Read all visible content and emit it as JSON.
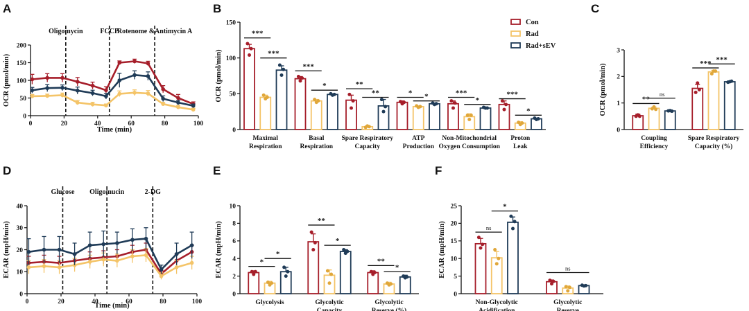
{
  "colors": {
    "Con": "#a61e2a",
    "Rad": "#f4c468",
    "Rad+sEV": "#1f3b57"
  },
  "legend": [
    "Con",
    "Rad",
    "Rad+sEV"
  ],
  "chart_data": [
    {
      "panel": "A",
      "type": "line",
      "xlabel": "Time (min)",
      "ylabel": "OCR (pmol/min)",
      "xlim": [
        0,
        100
      ],
      "ylim": [
        0,
        200
      ],
      "xticks": [
        0,
        20,
        40,
        60,
        80,
        100
      ],
      "yticks": [
        0,
        50,
        100,
        150,
        200
      ],
      "annotations": [
        {
          "x": 21,
          "label": "Oligomycin"
        },
        {
          "x": 47,
          "label": "FCCP"
        },
        {
          "x": 74,
          "label": "Rotenome &Antimycin A"
        }
      ],
      "series": [
        {
          "name": "Con",
          "x": [
            1,
            10,
            19,
            28,
            37,
            45,
            53,
            62,
            70,
            79,
            88,
            97
          ],
          "y": [
            103,
            107,
            107,
            96,
            85,
            72,
            150,
            154,
            148,
            75,
            50,
            33
          ],
          "err": [
            14,
            12,
            12,
            12,
            10,
            10,
            5,
            6,
            6,
            10,
            10,
            6
          ]
        },
        {
          "name": "Rad",
          "x": [
            1,
            10,
            19,
            28,
            37,
            45,
            53,
            62,
            70,
            79,
            88,
            97
          ],
          "y": [
            55,
            56,
            58,
            37,
            32,
            29,
            62,
            65,
            63,
            33,
            24,
            17
          ],
          "err": [
            5,
            5,
            6,
            6,
            6,
            4,
            8,
            8,
            8,
            5,
            5,
            4
          ]
        },
        {
          "name": "Rad+sEV",
          "x": [
            1,
            10,
            19,
            28,
            37,
            45,
            53,
            62,
            70,
            79,
            88,
            97
          ],
          "y": [
            72,
            78,
            79,
            71,
            64,
            55,
            100,
            115,
            112,
            48,
            37,
            28
          ],
          "err": [
            8,
            10,
            8,
            10,
            8,
            8,
            20,
            12,
            12,
            8,
            6,
            5
          ]
        }
      ]
    },
    {
      "panel": "B",
      "type": "bar",
      "ylabel": "OCR (pmol/min)",
      "ylim": [
        0,
        150
      ],
      "yticks": [
        0,
        50,
        100,
        150
      ],
      "categories": [
        [
          "Maximal",
          "Respiration"
        ],
        [
          "Basal",
          "Respiration"
        ],
        [
          "Spare Respiratory",
          "Capacity"
        ],
        [
          "ATP",
          "Production"
        ],
        [
          "Non-Mitochondrial",
          "Oxygen Consumption"
        ],
        [
          "Proton",
          "Leak"
        ]
      ],
      "series": [
        {
          "name": "Con",
          "values": [
            113,
            71,
            41,
            38,
            36,
            35
          ],
          "err": [
            6,
            3,
            7,
            2,
            4,
            5
          ],
          "points": [
            [
              120,
              104,
              113
            ],
            [
              74,
              68,
              72
            ],
            [
              49,
              30,
              40
            ],
            [
              39,
              36,
              38
            ],
            [
              40,
              30,
              37
            ],
            [
              40,
              28,
              35
            ]
          ]
        },
        {
          "name": "Rad",
          "values": [
            45,
            40,
            4,
            32,
            18,
            9
          ],
          "err": [
            3,
            2,
            1,
            1,
            4,
            2
          ],
          "points": [
            [
              48,
              43,
              45
            ],
            [
              42,
              38,
              40
            ],
            [
              3,
              5,
              4
            ],
            [
              33,
              31,
              32
            ],
            [
              20,
              14,
              20
            ],
            [
              10,
              7,
              9
            ]
          ]
        },
        {
          "name": "Rad+sEV",
          "values": [
            83,
            49,
            33,
            36,
            30,
            15
          ],
          "err": [
            6,
            1,
            9,
            1,
            1,
            1
          ],
          "points": [
            [
              90,
              76,
              84
            ],
            [
              50,
              48,
              49
            ],
            [
              42,
              25,
              32
            ],
            [
              37,
              35,
              36
            ],
            [
              31,
              30,
              30
            ],
            [
              16,
              14,
              15
            ]
          ]
        }
      ],
      "sig": [
        {
          "cat": 0,
          "from": 0,
          "to": 1,
          "label": "***",
          "y": 128
        },
        {
          "cat": 0,
          "from": 1,
          "to": 2,
          "label": "***",
          "y": 100
        },
        {
          "cat": 1,
          "from": 0,
          "to": 1,
          "label": "***",
          "y": 82
        },
        {
          "cat": 1,
          "from": 1,
          "to": 2,
          "label": "*",
          "y": 55
        },
        {
          "cat": 2,
          "from": 0,
          "to": 1,
          "label": "**",
          "y": 57
        },
        {
          "cat": 2,
          "from": 1,
          "to": 2,
          "label": "**",
          "y": 45
        },
        {
          "cat": 3,
          "from": 0,
          "to": 1,
          "label": "*",
          "y": 45
        },
        {
          "cat": 3,
          "from": 1,
          "to": 2,
          "label": "*",
          "y": 40
        },
        {
          "cat": 4,
          "from": 0,
          "to": 1,
          "label": "***",
          "y": 45
        },
        {
          "cat": 4,
          "from": 1,
          "to": 2,
          "label": "*",
          "y": 35
        },
        {
          "cat": 5,
          "from": 0,
          "to": 1,
          "label": "***",
          "y": 43
        },
        {
          "cat": 5,
          "from": 1,
          "to": 2,
          "label": "*",
          "y": 20
        }
      ]
    },
    {
      "panel": "C",
      "type": "bar",
      "ylabel": "OCR (pmol/min)",
      "ylim": [
        0,
        3
      ],
      "yticks": [
        0,
        1,
        2,
        3
      ],
      "categories": [
        [
          "Coupling",
          "Efficiency"
        ],
        [
          "Spare Respiratory",
          "Capacity (%)"
        ]
      ],
      "series": [
        {
          "name": "Con",
          "values": [
            0.52,
            1.55
          ],
          "err": [
            0.06,
            0.15
          ],
          "points": [
            [
              0.5,
              0.55,
              0.5
            ],
            [
              1.4,
              1.75,
              1.5
            ]
          ]
        },
        {
          "name": "Rad",
          "values": [
            0.8,
            2.17
          ],
          "err": [
            0.05,
            0.06
          ],
          "points": [
            [
              0.78,
              0.85,
              0.76
            ],
            [
              2.1,
              2.2,
              2.2
            ]
          ]
        },
        {
          "name": "Rad+sEV",
          "values": [
            0.7,
            1.8
          ],
          "err": [
            0.02,
            0.03
          ],
          "points": [
            [
              0.7,
              0.71,
              0.69
            ],
            [
              1.78,
              1.8,
              1.82
            ]
          ]
        }
      ],
      "sig": [
        {
          "cat": 0,
          "from": 0,
          "to": 1,
          "label": "**",
          "y": 0.98
        },
        {
          "cat": 0,
          "from": 1,
          "to": 2,
          "label": "ns",
          "y": 1.18
        },
        {
          "cat": 1,
          "from": 0,
          "to": 1,
          "label": "***",
          "y": 2.32
        },
        {
          "cat": 1,
          "from": 1,
          "to": 2,
          "label": "***",
          "y": 2.47
        }
      ]
    },
    {
      "panel": "D",
      "type": "line",
      "xlabel": "Time (min)",
      "ylabel": "ECAR (mpH/min)",
      "xlim": [
        0,
        100
      ],
      "ylim": [
        0,
        40
      ],
      "xticks": [
        0,
        20,
        40,
        60,
        80,
        100
      ],
      "yticks": [
        0,
        10,
        20,
        30,
        40
      ],
      "annotations": [
        {
          "x": 21,
          "label": "Glucose"
        },
        {
          "x": 47,
          "label": "Oligomucin"
        },
        {
          "x": 74,
          "label": "2-DG"
        }
      ],
      "series": [
        {
          "name": "Con",
          "x": [
            1,
            10,
            19,
            28,
            37,
            45,
            53,
            62,
            70,
            79,
            88,
            97
          ],
          "y": [
            14,
            14.5,
            14,
            15,
            16,
            16.5,
            17,
            19,
            20,
            9,
            15,
            19
          ],
          "err": [
            3,
            3,
            3,
            3,
            3,
            3,
            3,
            3,
            3,
            1.5,
            3,
            3
          ]
        },
        {
          "name": "Rad",
          "x": [
            1,
            10,
            19,
            28,
            37,
            45,
            53,
            62,
            70,
            79,
            88,
            97
          ],
          "y": [
            12,
            12.5,
            12,
            13,
            14.5,
            15.5,
            15,
            17,
            17.5,
            8,
            12,
            14
          ],
          "err": [
            3,
            3,
            3,
            3,
            3,
            3,
            3,
            3,
            3,
            1.5,
            3,
            3
          ]
        },
        {
          "name": "Rad+sEV",
          "x": [
            1,
            10,
            19,
            28,
            37,
            45,
            53,
            62,
            70,
            79,
            88,
            97
          ],
          "y": [
            19,
            20,
            20,
            18,
            22,
            22.5,
            23,
            24.5,
            25,
            11,
            18,
            22
          ],
          "err": [
            6,
            6,
            6,
            5,
            6,
            6,
            5,
            5,
            5,
            2,
            5,
            6
          ]
        }
      ]
    },
    {
      "panel": "E",
      "type": "bar",
      "ylabel": "ECAR (mpH/min)",
      "ylim": [
        0,
        10
      ],
      "yticks": [
        0,
        2,
        4,
        6,
        8,
        10
      ],
      "categories": [
        [
          "Glycolysis",
          ""
        ],
        [
          "Glycolytic",
          "Capacity"
        ],
        [
          "Glycolytic",
          "Reserve (%)"
        ]
      ],
      "series": [
        {
          "name": "Con",
          "values": [
            2.4,
            5.9,
            2.4
          ],
          "err": [
            0.2,
            0.9,
            0.2
          ],
          "points": [
            [
              2.5,
              2.2,
              2.5
            ],
            [
              7.0,
              5.0,
              5.8
            ],
            [
              2.5,
              2.2,
              2.4
            ]
          ]
        },
        {
          "name": "Rad",
          "values": [
            1.2,
            2.1,
            1.1
          ],
          "err": [
            0.2,
            0.6,
            0.2
          ],
          "points": [
            [
              1.3,
              1.0,
              1.2
            ],
            [
              2.6,
              1.2,
              2.2
            ],
            [
              1.2,
              1.0,
              1.1
            ]
          ]
        },
        {
          "name": "Rad+sEV",
          "values": [
            2.5,
            4.8,
            1.9
          ],
          "err": [
            0.5,
            0.2,
            0.2
          ],
          "points": [
            [
              3.0,
              2.0,
              2.5
            ],
            [
              5.0,
              4.6,
              4.8
            ],
            [
              2.0,
              1.8,
              1.9
            ]
          ]
        }
      ],
      "sig": [
        {
          "cat": 0,
          "from": 0,
          "to": 1,
          "label": "*",
          "y": 3.1
        },
        {
          "cat": 0,
          "from": 1,
          "to": 2,
          "label": "*",
          "y": 4.0
        },
        {
          "cat": 1,
          "from": 0,
          "to": 1,
          "label": "**",
          "y": 7.8
        },
        {
          "cat": 1,
          "from": 1,
          "to": 2,
          "label": "*",
          "y": 5.5
        },
        {
          "cat": 2,
          "from": 0,
          "to": 1,
          "label": "**",
          "y": 3.2
        },
        {
          "cat": 2,
          "from": 1,
          "to": 2,
          "label": "*",
          "y": 2.5
        }
      ]
    },
    {
      "panel": "F",
      "type": "bar",
      "ylabel": "ECAR (mpH/min)",
      "ylim": [
        0,
        25
      ],
      "yticks": [
        0,
        5,
        10,
        15,
        20,
        25
      ],
      "categories": [
        [
          "Non-Glycolytic",
          "Acidification"
        ],
        [
          "Glycolytic",
          "Reserve"
        ]
      ],
      "series": [
        {
          "name": "Con",
          "values": [
            14.2,
            3.4
          ],
          "err": [
            1.5,
            0.5
          ],
          "points": [
            [
              16,
              13,
              14
            ],
            [
              3.8,
              2.8,
              3.5
            ]
          ]
        },
        {
          "name": "Rad",
          "values": [
            10.2,
            1.6
          ],
          "err": [
            1.8,
            0.6
          ],
          "points": [
            [
              12.5,
              8.5,
              10
            ],
            [
              2.0,
              0.8,
              1.8
            ]
          ]
        },
        {
          "name": "Rad+sEV",
          "values": [
            20.3,
            2.3
          ],
          "err": [
            1.5,
            0.2
          ],
          "points": [
            [
              22,
              18.5,
              20.5
            ],
            [
              2.4,
              2.2,
              2.3
            ]
          ]
        }
      ],
      "sig": [
        {
          "cat": 0,
          "from": 0,
          "to": 1,
          "label": "ns",
          "y": 17.5
        },
        {
          "cat": 0,
          "from": 1,
          "to": 2,
          "label": "*",
          "y": 23.5
        },
        {
          "cat": 1,
          "from": 0,
          "to": 2,
          "label": "ns",
          "y": 6.0
        }
      ]
    }
  ]
}
